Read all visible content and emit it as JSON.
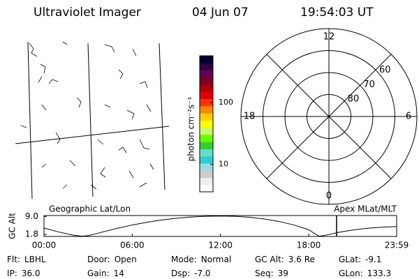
{
  "header": {
    "title": "Ultraviolet Imager",
    "date": "04 Jun 07",
    "time": "19:54:03 UT"
  },
  "map_panel": {
    "label": "Geographic Lat/Lon"
  },
  "colorbar": {
    "label": "photon cm⁻²s⁻¹",
    "log": true,
    "clim": [
      3.6,
      570
    ],
    "ticks": [
      10,
      100
    ],
    "colors": [
      "#ffffff",
      "#eeeeee",
      "#cccccc",
      "#99dddd",
      "#33cccc",
      "#66ddcc",
      "#33cc33",
      "#66ff00",
      "#ccff66",
      "#ffff00",
      "#ffcc00",
      "#ff8800",
      "#ff3300",
      "#e00000",
      "#b00000",
      "#800020",
      "#660055",
      "#330044",
      "#000033"
    ]
  },
  "polar": {
    "label": "Apex MLat/MLT",
    "rlim": [
      90,
      50
    ],
    "lat_ticks": [
      60,
      70,
      80
    ],
    "mlt_ticks": [
      12,
      18,
      6,
      0
    ]
  },
  "chart_data": {
    "type": "line",
    "ylabel": "GC Alt",
    "color": "#000000",
    "x": [
      0,
      1,
      2,
      2.6,
      3,
      4,
      5,
      6,
      7,
      8,
      9,
      10,
      11,
      12,
      13,
      14,
      15,
      16,
      17,
      18,
      18.7,
      19,
      20,
      21,
      22,
      23,
      23.983
    ],
    "values": [
      4.4,
      2.8,
      1.5,
      1.1,
      1.3,
      2.8,
      4.3,
      5.6,
      6.7,
      7.6,
      8.3,
      8.8,
      9.1,
      9.2,
      9.1,
      8.7,
      8.0,
      7.0,
      5.6,
      3.7,
      1.1,
      1.3,
      2.6,
      3.6,
      4.3,
      4.7,
      5.0
    ],
    "xlim": [
      0,
      23.983
    ],
    "ylim": [
      1.0,
      9.4
    ],
    "xticks": [
      {
        "value": 0,
        "label": "00:00"
      },
      {
        "value": 6,
        "label": "06:00"
      },
      {
        "value": 12,
        "label": "12:00"
      },
      {
        "value": 18,
        "label": "18:00"
      },
      {
        "value": 23.983,
        "label": "23:59"
      }
    ],
    "yticks": [
      {
        "value": 9.0,
        "label": "9.0"
      },
      1.8
    ],
    "marker_x": 19.9,
    "marker_color": "#e00000"
  },
  "footer": {
    "rows": [
      [
        {
          "label": "Flt:",
          "value": "LBHL"
        },
        {
          "label": "Door:",
          "value": "Open"
        },
        {
          "label": "Mode:",
          "value": "Normal"
        },
        {
          "label": "GC Alt:",
          "value": "3.6 Re"
        },
        {
          "label": "GLat:",
          "value": "-9.1"
        }
      ],
      [
        {
          "label": "IP:",
          "value": "36.0"
        },
        {
          "label": "Gain:",
          "value": "14"
        },
        {
          "label": "Dsp:",
          "value": "-7.0"
        },
        {
          "label": "Seq:",
          "value": "39"
        },
        {
          "label": "GLon:",
          "value": "133.3"
        }
      ]
    ]
  }
}
